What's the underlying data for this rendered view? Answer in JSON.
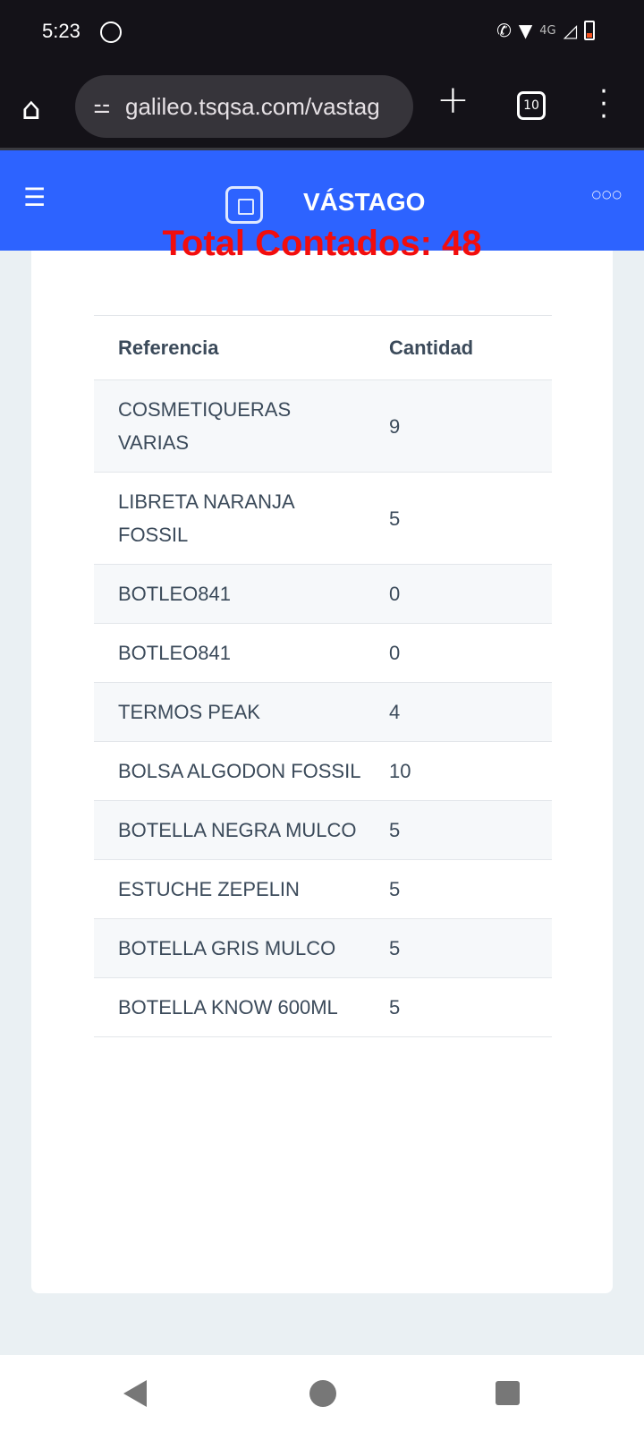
{
  "status": {
    "time": "5:23",
    "network": "4G"
  },
  "browser": {
    "url": "galileo.tsqsa.com/vastag",
    "tab_count": "10"
  },
  "app": {
    "title": "VÁSTAGO",
    "accent": "#2d63ff"
  },
  "card": {
    "total_label": "Total Contados: 48"
  },
  "table": {
    "headers": [
      "Referencia",
      "Cantidad"
    ],
    "rows": [
      {
        "ref": "COSMETIQUERAS VARIAS",
        "qty": "9"
      },
      {
        "ref": "LIBRETA NARANJA FOSSIL",
        "qty": "5"
      },
      {
        "ref": "BOTLEO841",
        "qty": "0"
      },
      {
        "ref": "BOTLEO841",
        "qty": "0"
      },
      {
        "ref": "TERMOS PEAK",
        "qty": "4"
      },
      {
        "ref": "BOLSA ALGODON FOSSIL",
        "qty": "10"
      },
      {
        "ref": "BOTELLA NEGRA MULCO",
        "qty": "5"
      },
      {
        "ref": "ESTUCHE ZEPELIN",
        "qty": "5"
      },
      {
        "ref": "BOTELLA GRIS MULCO",
        "qty": "5"
      },
      {
        "ref": "BOTELLA KNOW 600ML",
        "qty": "5"
      }
    ]
  }
}
